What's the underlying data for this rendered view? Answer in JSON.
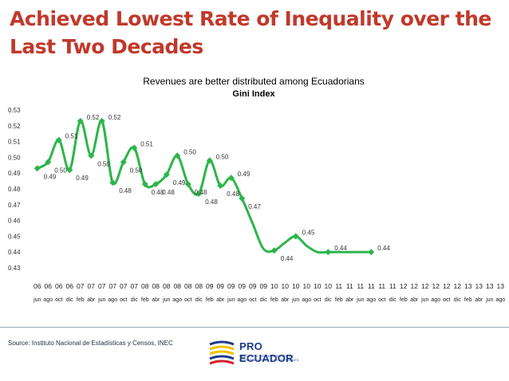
{
  "slide": {
    "title": "Achieved Lowest Rate of Inequality over the Last Two Decades",
    "source": "Source: Instituto Nacional de Estadísticas y Censos, INEC",
    "logo_word": "PRO ECUADOR",
    "logo_tagline": "INSTITUTO DE PROMOCIÓN DE EXPORTACIONES E INVERSIONES"
  },
  "chart_data": {
    "type": "line",
    "title": "Revenues are better distributed among Ecuadorians",
    "subtitle": "Gini Index",
    "ylim": [
      0.43,
      0.53
    ],
    "y_ticks": [
      "0.43",
      "0.44",
      "0.45",
      "0.46",
      "0.47",
      "0.48",
      "0.49",
      "0.50",
      "0.51",
      "0.52",
      "0.53"
    ],
    "grid": false,
    "legend": "none",
    "line_color": "#2db54a",
    "points": [
      {
        "year": "06",
        "month": "jun",
        "y": 0.493,
        "label": "0.49",
        "labeled": true
      },
      {
        "year": "06",
        "month": "ago",
        "y": 0.497,
        "label": "0.50",
        "labeled": true
      },
      {
        "year": "06",
        "month": "oct",
        "y": 0.511,
        "label": "0.51",
        "labeled": true
      },
      {
        "year": "06",
        "month": "dic",
        "y": 0.492,
        "label": "0.49",
        "labeled": true
      },
      {
        "year": "07",
        "month": "feb",
        "y": 0.523,
        "label": "0.52",
        "labeled": true
      },
      {
        "year": "07",
        "month": "abr",
        "y": 0.501,
        "label": "0.50",
        "labeled": true
      },
      {
        "year": "07",
        "month": "jun",
        "y": 0.523,
        "label": "0.52",
        "labeled": true
      },
      {
        "year": "07",
        "month": "ago",
        "y": 0.484,
        "label": "0.48",
        "labeled": true
      },
      {
        "year": "07",
        "month": "oct",
        "y": 0.497,
        "label": "0.50",
        "labeled": true
      },
      {
        "year": "07",
        "month": "dic",
        "y": 0.506,
        "label": "0.51",
        "labeled": true
      },
      {
        "year": "08",
        "month": "feb",
        "y": 0.483,
        "label": "0.48",
        "labeled": true
      },
      {
        "year": "08",
        "month": "abr",
        "y": 0.483,
        "label": "0.48",
        "labeled": true
      },
      {
        "year": "08",
        "month": "jun",
        "y": 0.489,
        "label": "0.49",
        "labeled": true
      },
      {
        "year": "08",
        "month": "ago",
        "y": 0.501,
        "label": "0.50",
        "labeled": true
      },
      {
        "year": "08",
        "month": "oct",
        "y": 0.483,
        "label": "0.48",
        "labeled": true
      },
      {
        "year": "08",
        "month": "dic",
        "y": 0.477,
        "label": "0.48",
        "labeled": true
      },
      {
        "year": "09",
        "month": "feb",
        "y": 0.498,
        "label": "0.50",
        "labeled": true
      },
      {
        "year": "09",
        "month": "abr",
        "y": 0.482,
        "label": "0.48",
        "labeled": true
      },
      {
        "year": "09",
        "month": "jun",
        "y": 0.487,
        "label": "0.49",
        "labeled": true
      },
      {
        "year": "09",
        "month": "ago",
        "y": 0.474,
        "label": "0.47",
        "labeled": true
      },
      {
        "year": "09",
        "month": "oct",
        "y": 0.458,
        "label": "",
        "labeled": false
      },
      {
        "year": "09",
        "month": "dic",
        "y": 0.442,
        "label": "",
        "labeled": false
      },
      {
        "year": "10",
        "month": "feb",
        "y": 0.441,
        "label": "0.44",
        "labeled": true
      },
      {
        "year": "10",
        "month": "abr",
        "y": 0.446,
        "label": "",
        "labeled": false
      },
      {
        "year": "10",
        "month": "jun",
        "y": 0.45,
        "label": "0.45",
        "labeled": true
      },
      {
        "year": "10",
        "month": "ago",
        "y": 0.444,
        "label": "",
        "labeled": false
      },
      {
        "year": "10",
        "month": "oct",
        "y": 0.44,
        "label": "",
        "labeled": false
      },
      {
        "year": "10",
        "month": "dic",
        "y": 0.44,
        "label": "0.44",
        "labeled": true
      },
      {
        "year": "11",
        "month": "feb",
        "y": 0.44,
        "label": "",
        "labeled": false
      },
      {
        "year": "11",
        "month": "abr",
        "y": 0.44,
        "label": "",
        "labeled": false
      },
      {
        "year": "11",
        "month": "jun",
        "y": 0.44,
        "label": "",
        "labeled": false
      },
      {
        "year": "11",
        "month": "ago",
        "y": 0.44,
        "label": "0.44",
        "labeled": true
      }
    ],
    "x_year_labels": [
      "06",
      "06",
      "06",
      "06",
      "07",
      "07",
      "07",
      "07",
      "07",
      "07",
      "08",
      "08",
      "08",
      "08",
      "08",
      "08",
      "09",
      "09",
      "09",
      "09",
      "09",
      "09",
      "10",
      "10",
      "10",
      "10",
      "10",
      "10",
      "11",
      "11",
      "11",
      "11",
      "11",
      "11",
      "12",
      "12",
      "12",
      "12",
      "12",
      "12",
      "13",
      "13",
      "13",
      "13"
    ],
    "x_month_labels": [
      "jun",
      "ago",
      "oct",
      "dic",
      "feb",
      "abr",
      "jun",
      "ago",
      "oct",
      "dic",
      "feb",
      "abr",
      "jun",
      "ago",
      "oct",
      "dic",
      "feb",
      "abr",
      "jun",
      "ago",
      "oct",
      "dic",
      "feb",
      "abr",
      "jun",
      "ago",
      "oct",
      "dic",
      "feb",
      "abr",
      "jun",
      "ago",
      "oct",
      "dic",
      "feb",
      "abr",
      "jun",
      "ago",
      "oct",
      "dic",
      "feb",
      "abr",
      "jun",
      "ago"
    ]
  }
}
